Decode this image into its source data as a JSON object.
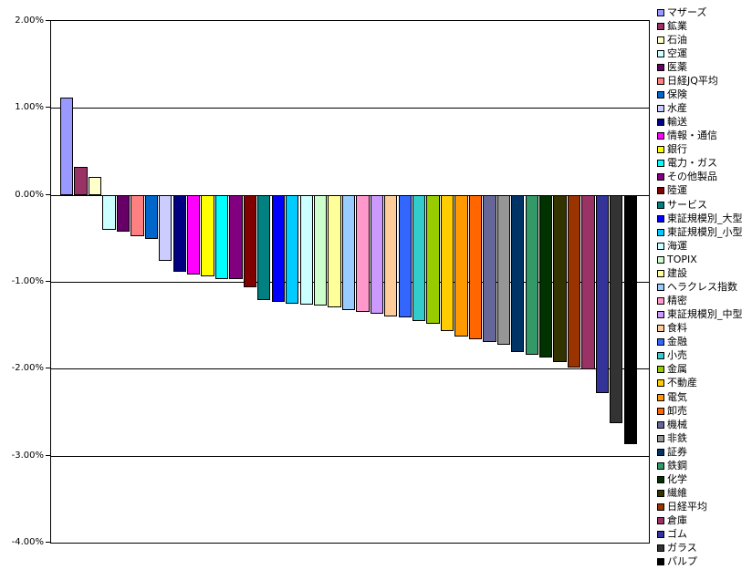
{
  "chart_data": {
    "type": "bar",
    "title": "",
    "xlabel": "",
    "ylabel": "",
    "ylim": [
      -4.0,
      2.0
    ],
    "grid": true,
    "legend_position": "right",
    "value_format": "percent",
    "yticks": [
      2.0,
      1.0,
      0.0,
      -1.0,
      -2.0,
      -3.0,
      -4.0
    ],
    "ytick_labels": [
      "2.00%",
      "1.00%",
      "0.00%",
      "-1.00%",
      "-2.00%",
      "-3.00%",
      "-4.00%"
    ],
    "categories": [
      "マザーズ",
      "鉱業",
      "石油",
      "空運",
      "医薬",
      "日経JQ平均",
      "保険",
      "水産",
      "輸送",
      "情報・通信",
      "銀行",
      "電力・ガス",
      "その他製品",
      "陸運",
      "サービス",
      "東証規模別_大型",
      "東証規模別_小型",
      "海運",
      "TOPIX",
      "建設",
      "ヘラクレス指数",
      "精密",
      "東証規模別_中型",
      "食料",
      "金融",
      "小売",
      "金属",
      "不動産",
      "電気",
      "卸売",
      "機械",
      "非鉄",
      "証券",
      "鉄鋼",
      "化学",
      "繊維",
      "日経平均",
      "倉庫",
      "ゴム",
      "ガラス",
      "パルプ"
    ],
    "values": [
      1.12,
      0.32,
      0.21,
      -0.4,
      -0.42,
      -0.47,
      -0.5,
      -0.76,
      -0.88,
      -0.91,
      -0.93,
      -0.96,
      -0.97,
      -1.06,
      -1.21,
      -1.23,
      -1.25,
      -1.26,
      -1.27,
      -1.29,
      -1.32,
      -1.34,
      -1.36,
      -1.39,
      -1.41,
      -1.45,
      -1.48,
      -1.56,
      -1.63,
      -1.66,
      -1.69,
      -1.72,
      -1.8,
      -1.84,
      -1.87,
      -1.92,
      -1.98,
      -2.0,
      -2.28,
      -2.62,
      -2.86
    ],
    "colors": [
      "#9999FF",
      "#993366",
      "#FFFFCC",
      "#CCFFFF",
      "#660066",
      "#FF8080",
      "#0066CC",
      "#CCCCFF",
      "#000080",
      "#FF00FF",
      "#FFFF00",
      "#00FFFF",
      "#800080",
      "#800000",
      "#008080",
      "#0000FF",
      "#00CCFF",
      "#CCFFFF",
      "#CCFFCC",
      "#FFFF99",
      "#99CCFF",
      "#FF99CC",
      "#CC99FF",
      "#FFCC99",
      "#3366FF",
      "#33CCCC",
      "#99CC00",
      "#FFCC00",
      "#FF9900",
      "#FF6600",
      "#666699",
      "#969696",
      "#003366",
      "#339966",
      "#003300",
      "#333300",
      "#993300",
      "#993366",
      "#333399",
      "#333333",
      "#000000"
    ],
    "axis_color": "#000000",
    "background_color": "#FFFFFF"
  }
}
